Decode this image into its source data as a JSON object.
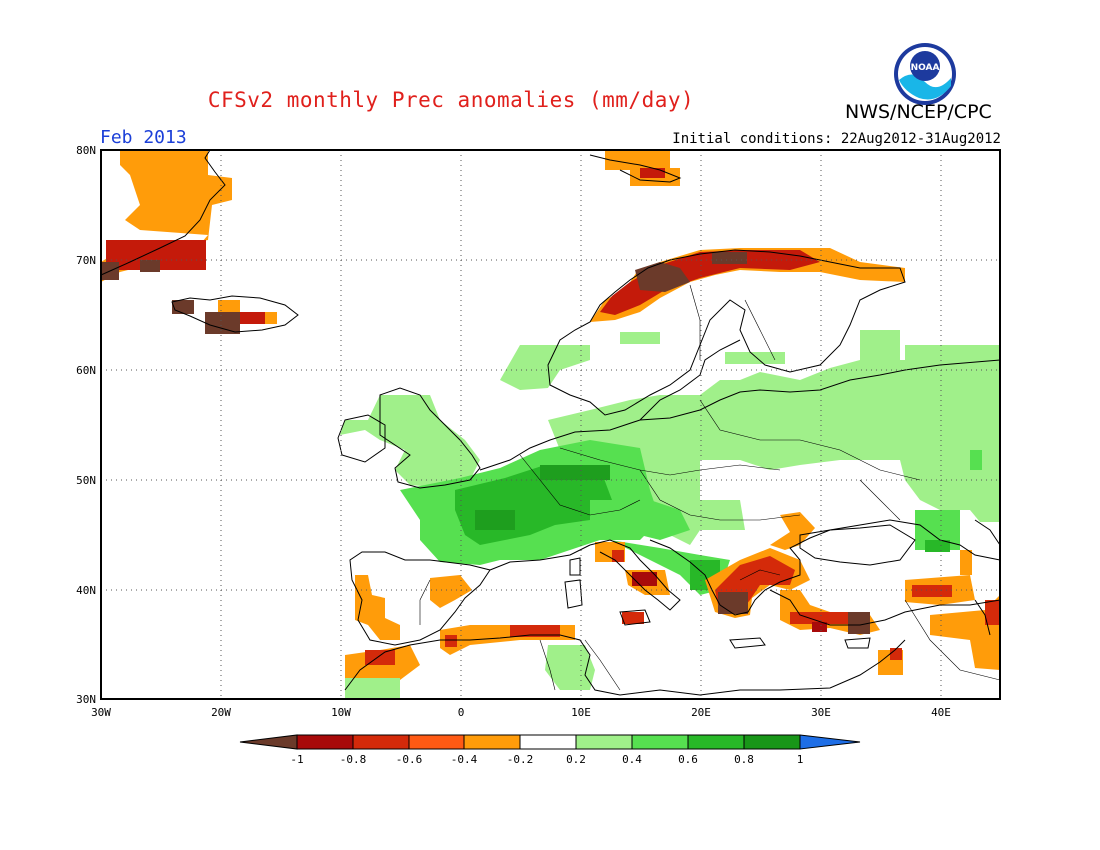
{
  "title": "CFSv2 monthly Prec anomalies (mm/day)",
  "agency": "NWS/NCEP/CPC",
  "logo_text": "NOAA",
  "valid_month": "Feb 2013",
  "initial_conditions": "Initial conditions: 22Aug2012-31Aug2012",
  "lat_labels": [
    "80N",
    "70N",
    "60N",
    "50N",
    "40N",
    "30N"
  ],
  "lon_labels": [
    "30W",
    "20W",
    "10W",
    "0",
    "10E",
    "20E",
    "30E",
    "40E"
  ],
  "colorbar": {
    "labels": [
      "-1",
      "-0.8",
      "-0.6",
      "-0.4",
      "-0.2",
      "0.2",
      "0.4",
      "0.6",
      "0.8",
      "1"
    ],
    "colors": [
      "#6b3a2a",
      "#a80a0a",
      "#d42a0a",
      "#ff5a14",
      "#ff9c0a",
      "#ffffff",
      "#a0f08a",
      "#56e050",
      "#28b828",
      "#189618",
      "#1e6ee6"
    ]
  },
  "colors": {
    "title": "#e0201c",
    "month": "#1b3fd8",
    "dry_strong": "#6b3a2a",
    "dry_dark": "#a80a0a",
    "dry_red": "#d42a0a",
    "dry_orange": "#ff9c0a",
    "wet_light": "#a0f08a",
    "wet_medium": "#56e050",
    "wet_dark": "#28b828"
  }
}
